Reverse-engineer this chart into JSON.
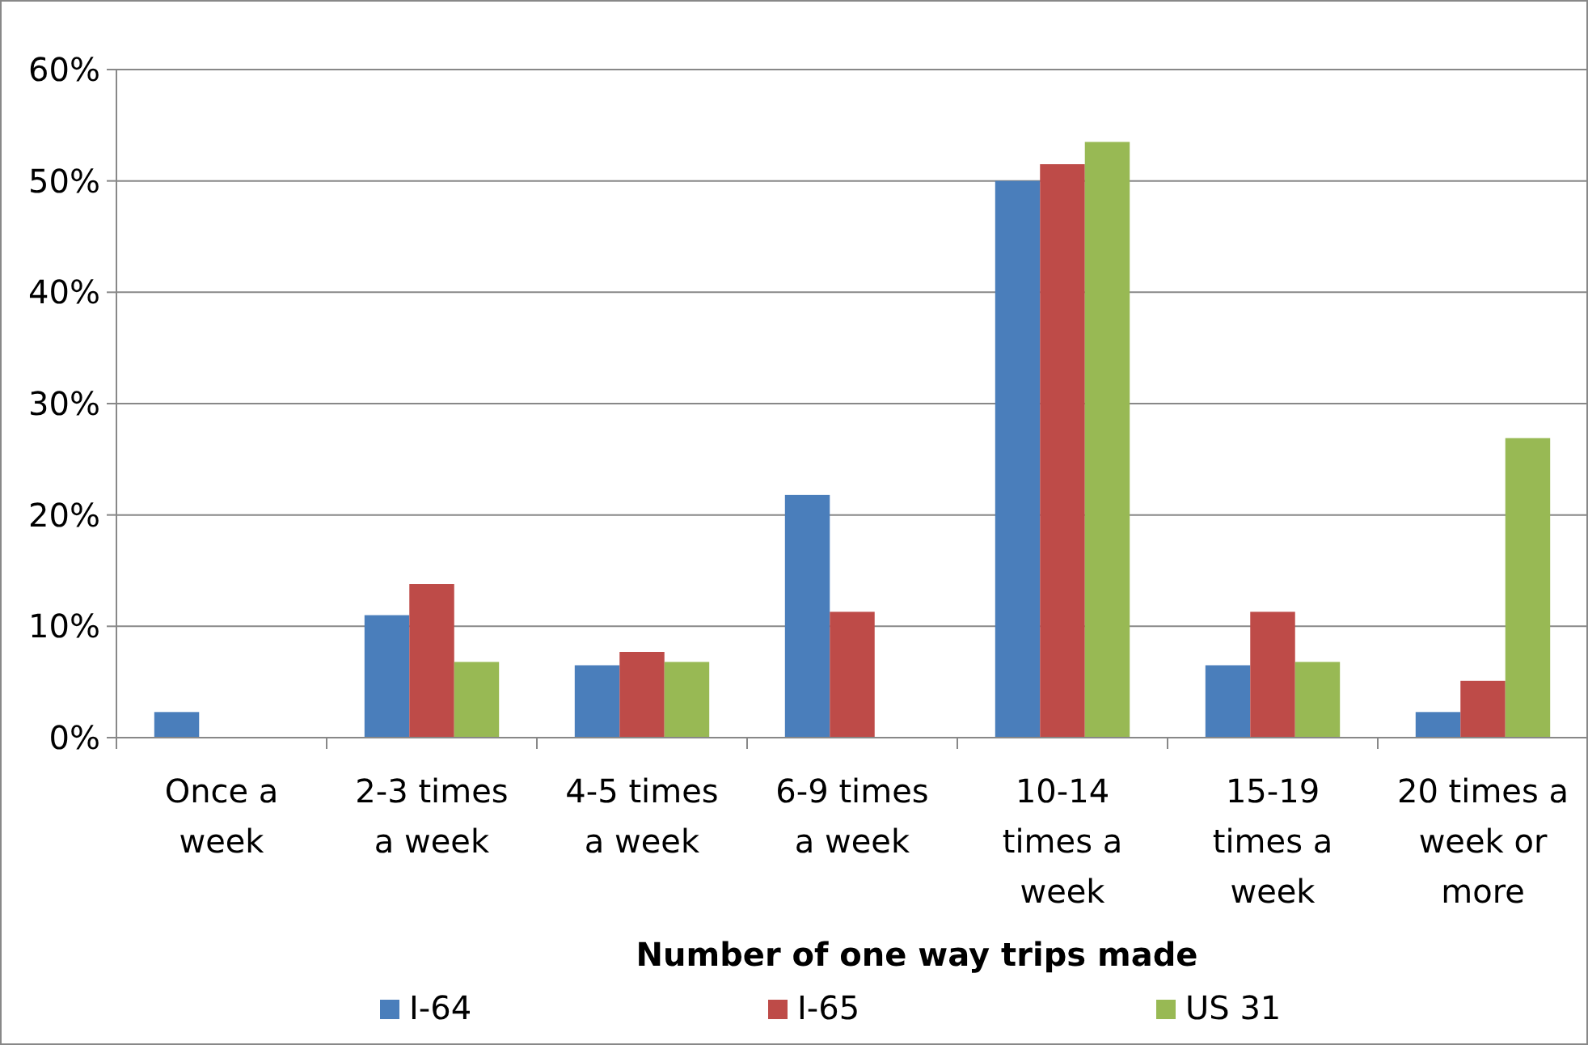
{
  "chart_data": {
    "type": "bar",
    "xlabel": "Number of one way trips made",
    "categories": [
      "Once a week",
      "2-3 times a week",
      "4-5 times a week",
      "6-9 times a week",
      "10-14 times a week",
      "15-19 times a week",
      "20 times a week or more"
    ],
    "series": [
      {
        "name": "I-64",
        "color": "#4a7ebb",
        "values": [
          2.3,
          11.0,
          6.5,
          21.8,
          50.0,
          6.5,
          2.3
        ]
      },
      {
        "name": "I-65",
        "color": "#be4b48",
        "values": [
          0,
          13.8,
          7.7,
          11.3,
          51.5,
          11.3,
          5.1
        ]
      },
      {
        "name": "US 31",
        "color": "#98b954",
        "values": [
          0,
          6.8,
          6.8,
          0,
          53.5,
          6.8,
          26.9
        ]
      }
    ],
    "ylim": [
      0,
      60
    ],
    "yticks": [
      {
        "value": 0,
        "label": "0%"
      },
      {
        "value": 10,
        "label": "10%"
      },
      {
        "value": 20,
        "label": "20%"
      },
      {
        "value": 30,
        "label": "30%"
      },
      {
        "value": 40,
        "label": "40%"
      },
      {
        "value": 50,
        "label": "50%"
      },
      {
        "value": 60,
        "label": "60%"
      }
    ],
    "grid": "y",
    "legend": "bottom"
  }
}
